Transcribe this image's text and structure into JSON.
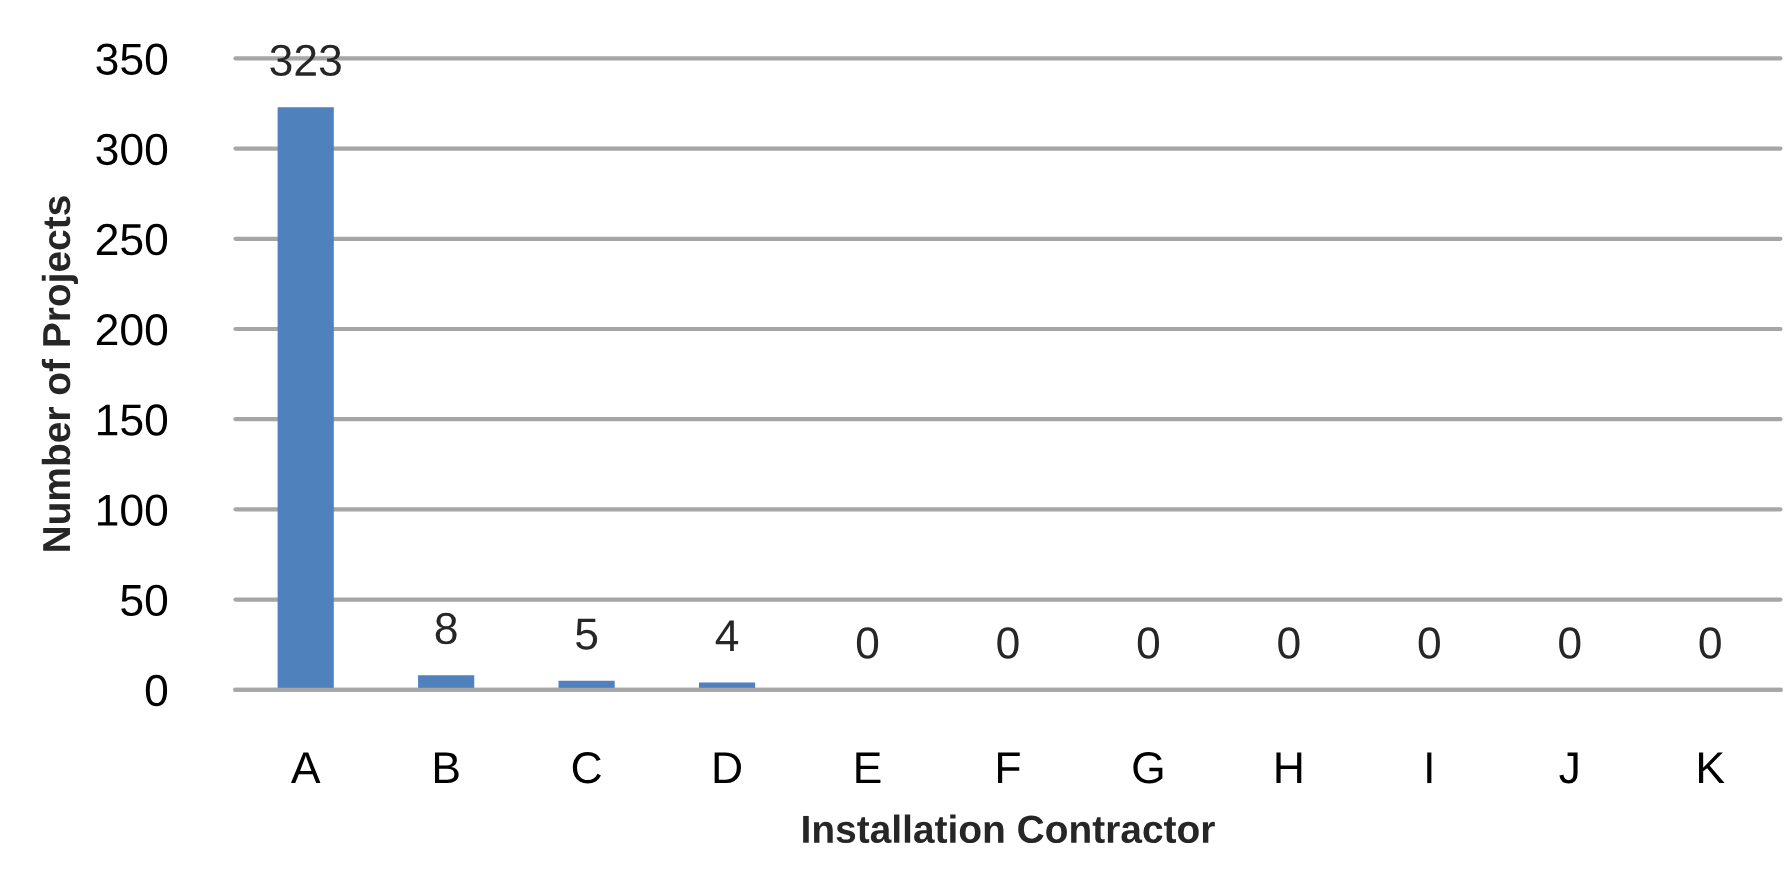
{
  "chart_data": {
    "type": "bar",
    "xlabel": "Installation Contractor",
    "ylabel": "Number of Projects",
    "categories": [
      "A",
      "B",
      "C",
      "D",
      "E",
      "F",
      "G",
      "H",
      "I",
      "J",
      "K"
    ],
    "values": [
      323,
      8,
      5,
      4,
      0,
      0,
      0,
      0,
      0,
      0,
      0
    ],
    "color": "#4f81bd",
    "ylim": [
      0,
      350
    ],
    "yticks": [
      0,
      50,
      100,
      150,
      200,
      250,
      300,
      350
    ],
    "grid": "y",
    "data_labels": true
  }
}
